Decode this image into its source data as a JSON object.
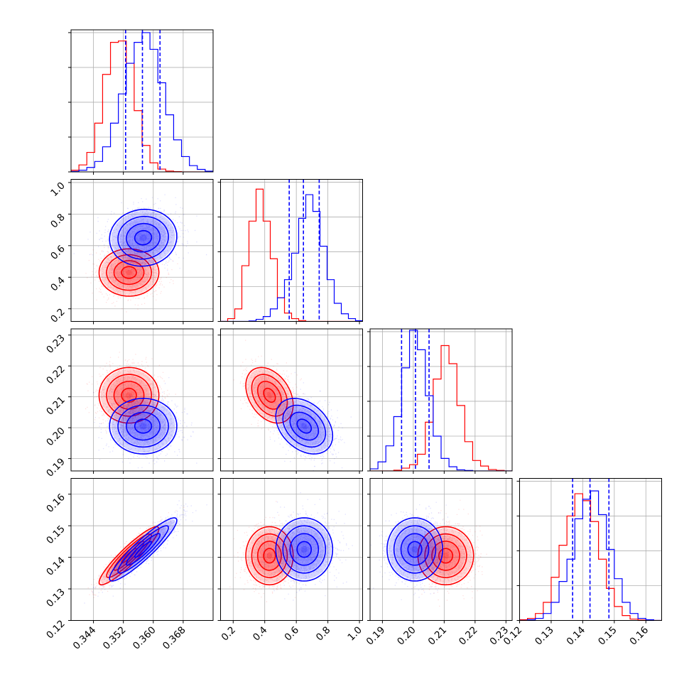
{
  "chart_data": {
    "type": "corner",
    "grid": true,
    "colors": {
      "series_a": "#0000ff",
      "series_b": "#ff0000",
      "gridline": "#b0b0b0",
      "frame": "#000000"
    },
    "series": [
      {
        "color": "#0000ff"
      },
      {
        "color": "#ff0000"
      }
    ],
    "parameters": [
      {
        "range": [
          0.338,
          0.376
        ],
        "ticks": [
          0.344,
          0.352,
          0.36,
          0.368
        ],
        "tick_labels": [
          "0.344",
          "0.352",
          "0.360",
          "0.368"
        ],
        "quantiles": [
          0.3526,
          0.3571,
          0.3618
        ],
        "hist_a": [
          0.3,
          1.2,
          3.2,
          7.5,
          18,
          35,
          56,
          78,
          93,
          100,
          88,
          64,
          41,
          23,
          11,
          4.5,
          1.8,
          0.5
        ],
        "hist_b": [
          1.2,
          5,
          14,
          35,
          70,
          93,
          94,
          78,
          44,
          19,
          6.5,
          2,
          0.6,
          0.2,
          0,
          0,
          0,
          0
        ]
      },
      {
        "range": [
          0.12,
          1.02
        ],
        "ticks": [
          0.2,
          0.4,
          0.6,
          0.8,
          1.0
        ],
        "tick_labels": [
          "0.2",
          "0.4",
          "0.6",
          "0.8",
          "1.0"
        ],
        "quantiles": [
          0.555,
          0.645,
          0.745
        ],
        "hist_a": [
          0,
          0,
          0,
          0,
          0.3,
          1.5,
          3.5,
          9,
          17,
          30,
          49,
          74,
          91,
          79,
          54,
          30,
          13,
          5.5,
          2,
          0.5
        ],
        "hist_b": [
          0,
          2,
          9,
          40,
          72,
          95,
          72,
          45,
          17,
          6,
          2,
          0.6,
          0,
          0,
          0,
          0,
          0,
          0,
          0,
          0
        ]
      },
      {
        "range": [
          0.186,
          0.232
        ],
        "ticks": [
          0.19,
          0.2,
          0.21,
          0.22,
          0.23
        ],
        "tick_labels": [
          "0.19",
          "0.20",
          "0.21",
          "0.22",
          "0.23"
        ],
        "quantiles": [
          0.1962,
          0.2007,
          0.2051
        ],
        "hist_a": [
          1.5,
          6.5,
          18,
          39,
          74,
          101,
          87,
          54,
          25,
          9,
          3,
          0.8,
          0.3,
          0,
          0,
          0,
          0,
          0
        ],
        "hist_b": [
          0,
          0,
          0,
          0.5,
          2,
          4.5,
          12,
          35,
          66,
          90,
          77,
          47,
          21,
          7.5,
          3.5,
          1,
          0.4,
          0
        ]
      },
      {
        "range": [
          0.12,
          0.165
        ],
        "ticks": [
          0.12,
          0.13,
          0.14,
          0.15,
          0.16
        ],
        "tick_labels": [
          "0.12",
          "0.13",
          "0.14",
          "0.15",
          "0.16"
        ],
        "quantiles": [
          0.1368,
          0.1423,
          0.1483
        ],
        "hist_a": [
          0,
          0.5,
          1.5,
          5,
          13,
          28,
          44,
          73,
          87,
          93,
          76,
          51,
          30,
          13,
          5,
          1.5,
          0.5,
          0
        ],
        "hist_b": [
          0.5,
          1.5,
          5,
          13,
          31,
          54,
          75,
          91,
          86,
          71,
          44,
          23,
          10,
          3.5,
          1,
          0.3,
          0,
          0
        ]
      }
    ],
    "scatter_2d": [
      {
        "x_param": 0,
        "y_param": 1,
        "a": {
          "mean": [
            0.3573,
            0.65
          ],
          "sd": [
            0.0045,
            0.09
          ],
          "rho": 0.05
        },
        "b": {
          "mean": [
            0.3535,
            0.43
          ],
          "sd": [
            0.004,
            0.075
          ],
          "rho": 0.0
        }
      },
      {
        "x_param": 0,
        "y_param": 2,
        "a": {
          "mean": [
            0.3573,
            0.2005
          ],
          "sd": [
            0.0045,
            0.0045
          ],
          "rho": 0.0
        },
        "b": {
          "mean": [
            0.3535,
            0.2105
          ],
          "sd": [
            0.004,
            0.0045
          ],
          "rho": 0.0
        }
      },
      {
        "x_param": 0,
        "y_param": 3,
        "a": {
          "mean": [
            0.3573,
            0.1425
          ],
          "sd": [
            0.0045,
            0.005
          ],
          "rho": 0.92
        },
        "b": {
          "mean": [
            0.3535,
            0.1405
          ],
          "sd": [
            0.004,
            0.0046
          ],
          "rho": 0.92
        }
      },
      {
        "x_param": 1,
        "y_param": 2,
        "a": {
          "mean": [
            0.65,
            0.2005
          ],
          "sd": [
            0.09,
            0.0045
          ],
          "rho": -0.35
        },
        "b": {
          "mean": [
            0.43,
            0.2105
          ],
          "sd": [
            0.075,
            0.0045
          ],
          "rho": -0.35
        }
      },
      {
        "x_param": 1,
        "y_param": 3,
        "a": {
          "mean": [
            0.65,
            0.1425
          ],
          "sd": [
            0.09,
            0.005
          ],
          "rho": 0.0
        },
        "b": {
          "mean": [
            0.43,
            0.1405
          ],
          "sd": [
            0.075,
            0.0046
          ],
          "rho": 0.0
        }
      },
      {
        "x_param": 2,
        "y_param": 3,
        "a": {
          "mean": [
            0.2005,
            0.1425
          ],
          "sd": [
            0.0045,
            0.005
          ],
          "rho": 0.0
        },
        "b": {
          "mean": [
            0.2105,
            0.1405
          ],
          "sd": [
            0.0045,
            0.0046
          ],
          "rho": 0.0
        }
      }
    ]
  }
}
